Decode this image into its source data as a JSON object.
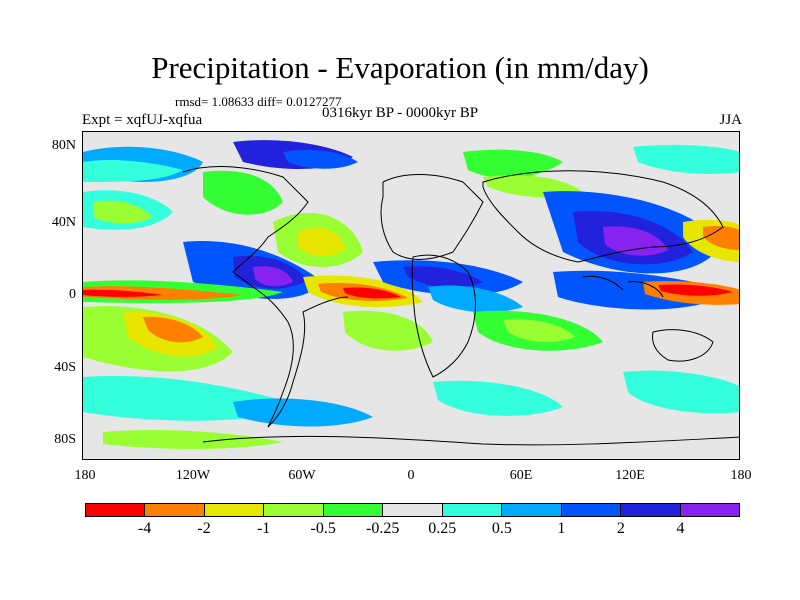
{
  "title": "Precipitation - Evaporation (in mm/day)",
  "rmsd_text": "rmsd= 1.08633 diff= 0.0127277",
  "expt_text": "Expt = xqfUJ-xqfua",
  "period_text": "0316kyr BP - 0000kyr BP",
  "season_text": "JJA",
  "lat_labels": [
    "80N",
    "40N",
    "0",
    "40S",
    "80S"
  ],
  "lon_labels": [
    "180",
    "120W",
    "60W",
    "0",
    "60E",
    "120E",
    "180"
  ],
  "colorbar": {
    "colors": [
      "#ff0000",
      "#ff8000",
      "#e6e600",
      "#99ff33",
      "#33ff33",
      "#e6e6e6",
      "#33ffdd",
      "#00aaff",
      "#0055ff",
      "#2222dd",
      "#8822ee"
    ],
    "labels": [
      "-4",
      "-2",
      "-1",
      "-0.5",
      "-0.25",
      "0.25",
      "0.5",
      "1",
      "2",
      "4"
    ]
  }
}
